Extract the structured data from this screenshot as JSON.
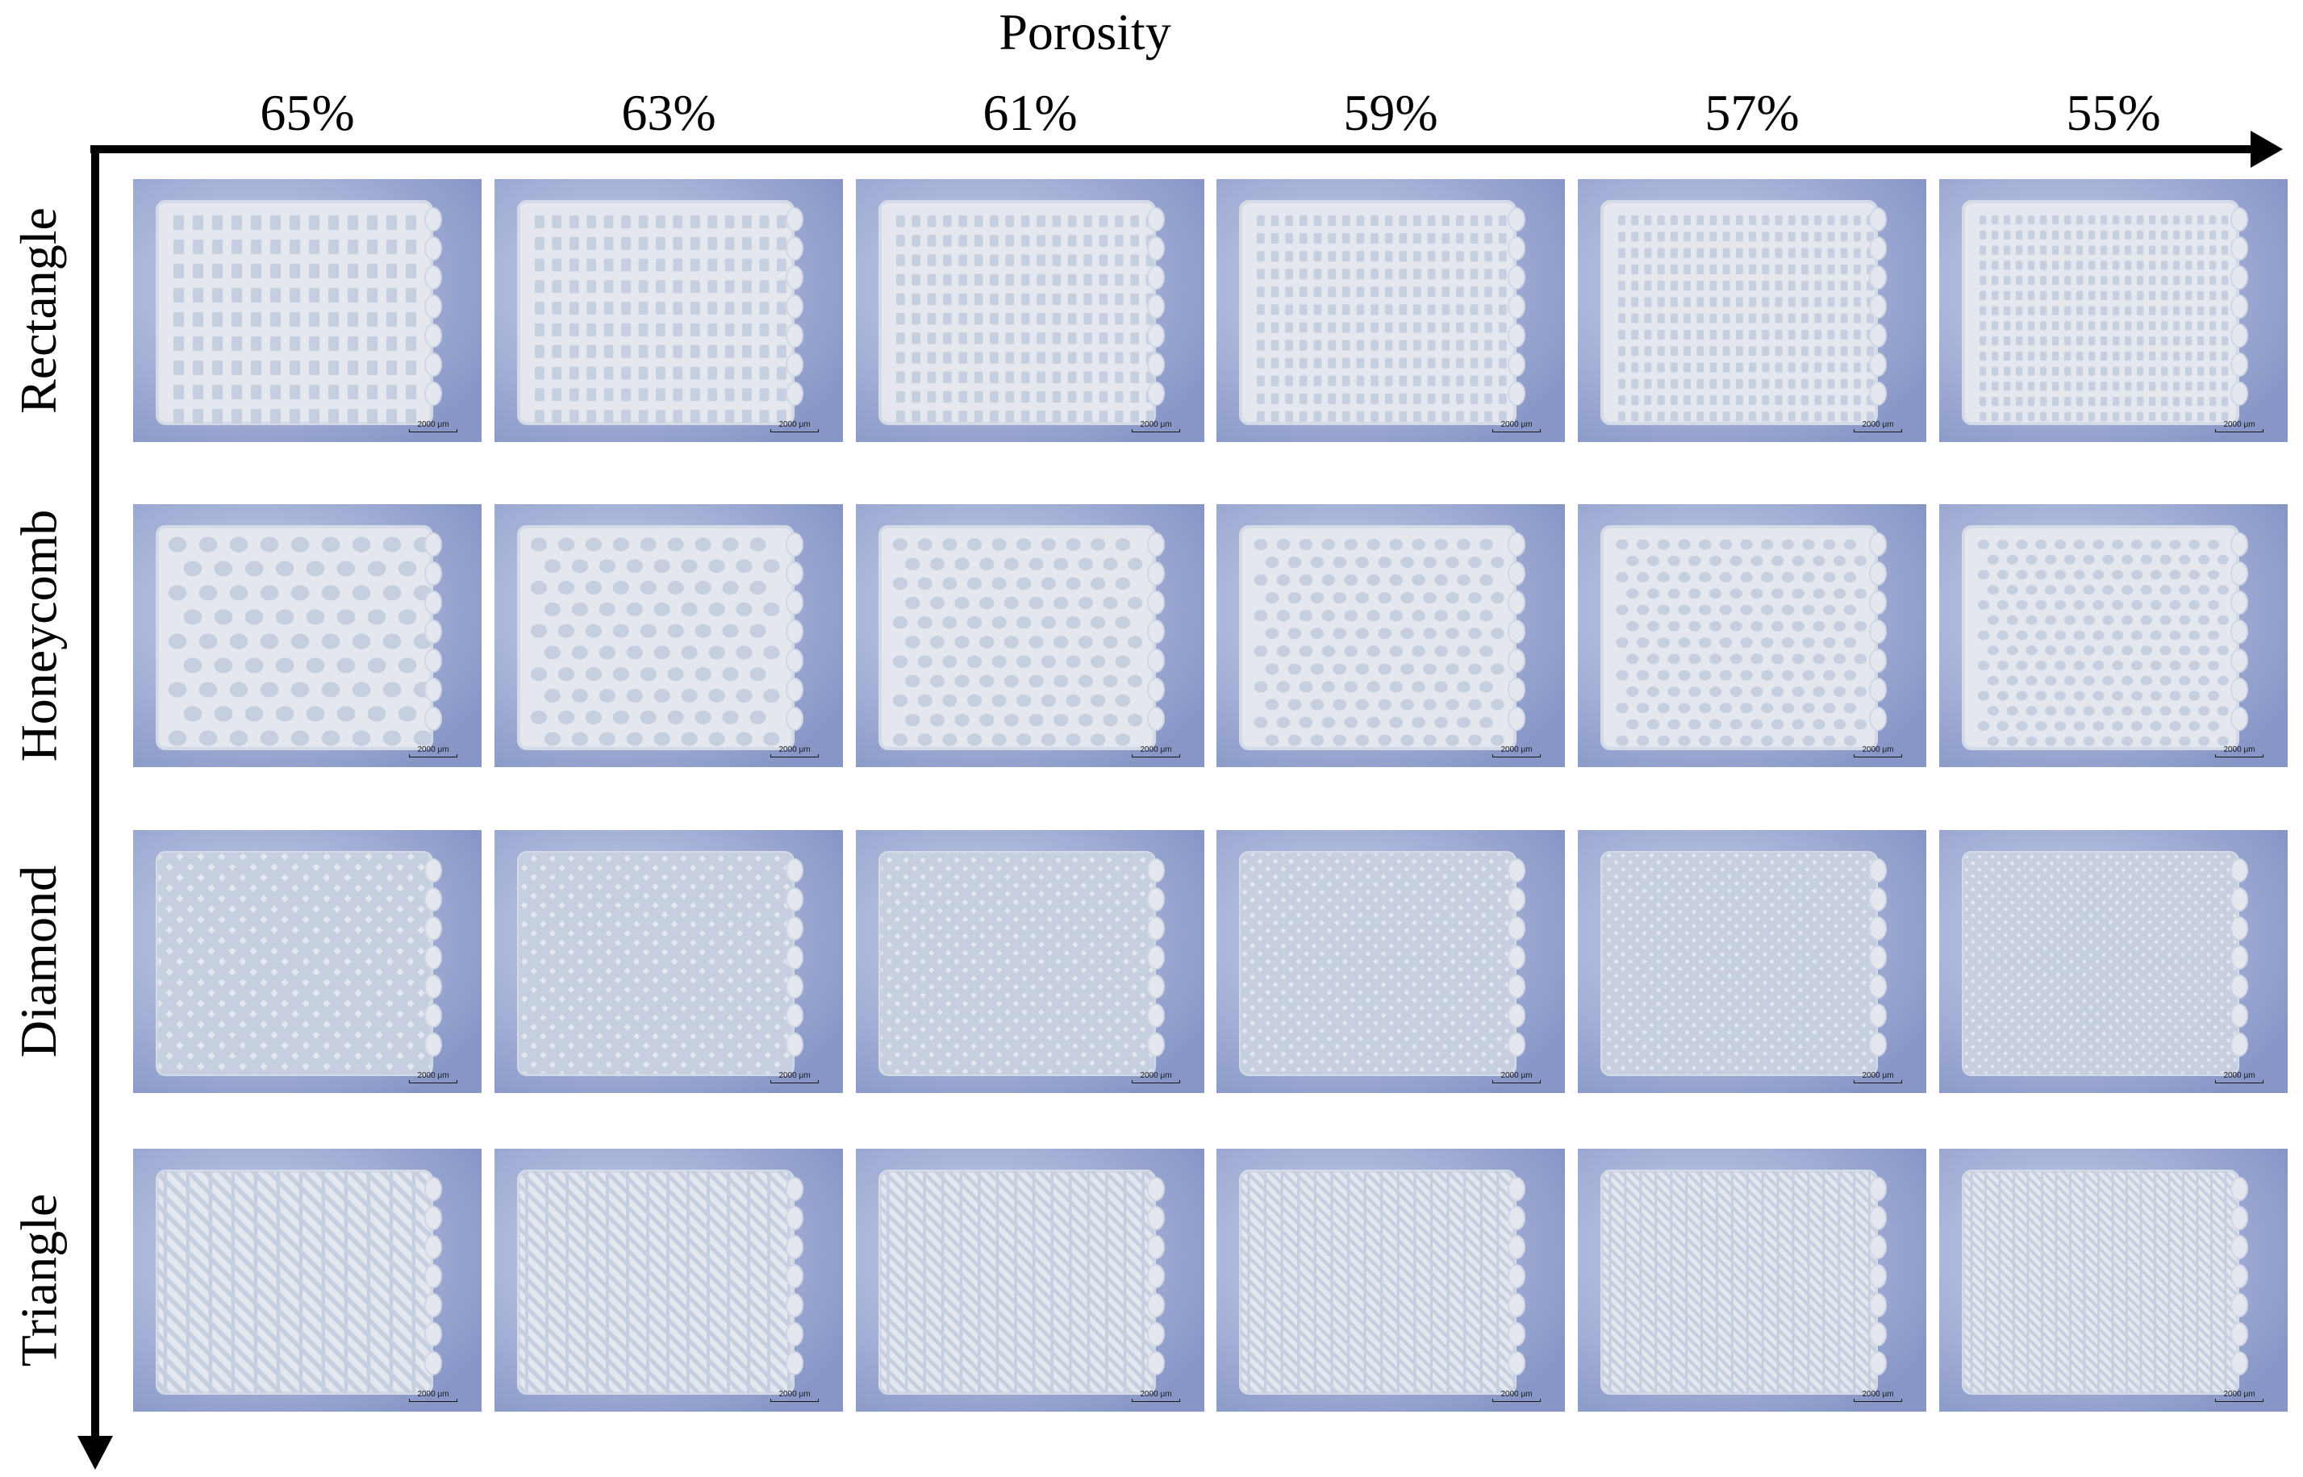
{
  "axis_title": "Porosity",
  "columns": [
    "65%",
    "63%",
    "61%",
    "59%",
    "57%",
    "55%"
  ],
  "rows": [
    {
      "label": "Rectangle",
      "pattern": "rectangle"
    },
    {
      "label": "Honeycomb",
      "pattern": "honeycomb"
    },
    {
      "label": "Diamond",
      "pattern": "diamond"
    },
    {
      "label": "Triangle",
      "pattern": "triangle"
    }
  ],
  "scale_label": "2000 μm",
  "colors": {
    "background": "#9aa8d2",
    "scaffold": "#e4e8ee",
    "strut": "#f4f6f8",
    "pore": "#c6cfe0",
    "axis": "#000000"
  }
}
